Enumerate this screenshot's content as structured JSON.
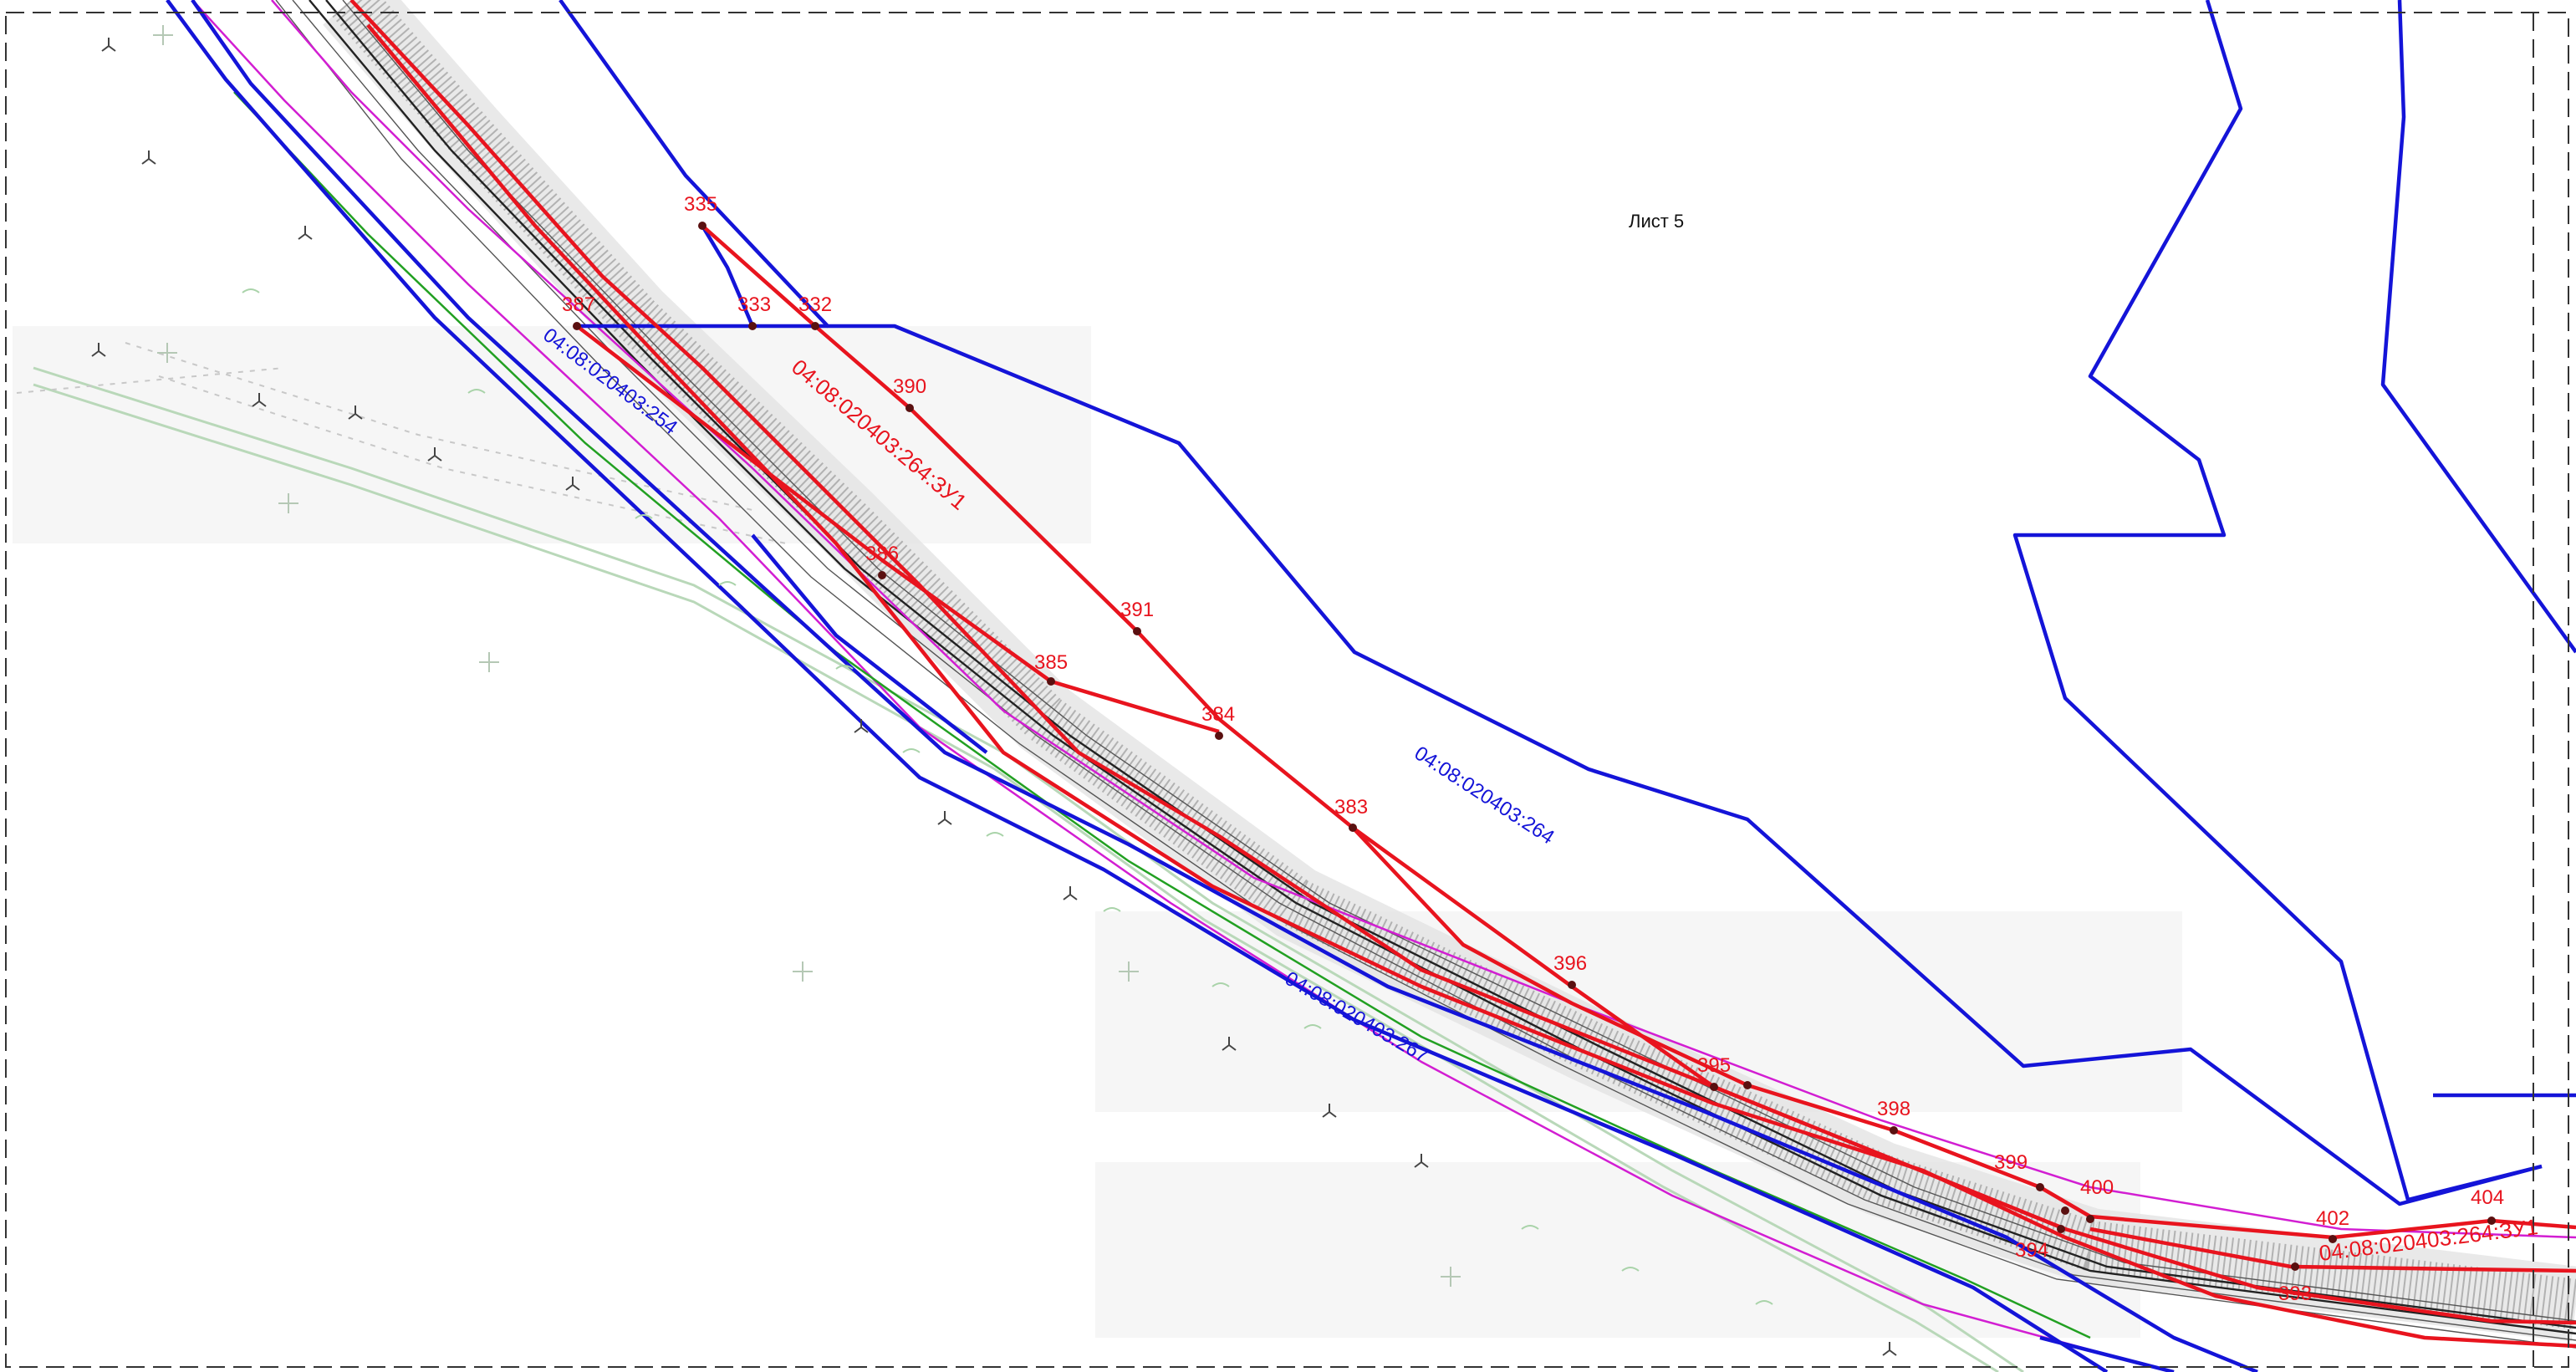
{
  "sheet_label": "Лист 5",
  "parcels": {
    "parcel_254": "04:08:020403:254",
    "parcel_264": "04:08:020403:264",
    "parcel_267": "04:08:020403:267",
    "parcel_264_zu1_upper": "04:08:020403:264:ЗУ1",
    "parcel_264_zu1_lower": "04:08:020403:264:ЗУ1"
  },
  "points": [
    {
      "id": "p335",
      "label": "335"
    },
    {
      "id": "p333",
      "label": "333"
    },
    {
      "id": "p332",
      "label": "332"
    },
    {
      "id": "p387",
      "label": "387"
    },
    {
      "id": "p390",
      "label": "390"
    },
    {
      "id": "p386",
      "label": "386"
    },
    {
      "id": "p391",
      "label": "391"
    },
    {
      "id": "p385",
      "label": "385"
    },
    {
      "id": "p384",
      "label": "384"
    },
    {
      "id": "p383",
      "label": "383"
    },
    {
      "id": "p396",
      "label": "396"
    },
    {
      "id": "p395",
      "label": "395"
    },
    {
      "id": "p398",
      "label": "398"
    },
    {
      "id": "p399",
      "label": "399"
    },
    {
      "id": "p400",
      "label": "400"
    },
    {
      "id": "p394",
      "label": "394"
    },
    {
      "id": "p402",
      "label": "402"
    },
    {
      "id": "p404",
      "label": "404"
    },
    {
      "id": "p393",
      "label": "393"
    }
  ],
  "colors": {
    "boundary_blue": "#1414d8",
    "boundary_red": "#e8141e",
    "auxiliary_pink": "#d21ed2",
    "auxiliary_green": "#22a022"
  }
}
